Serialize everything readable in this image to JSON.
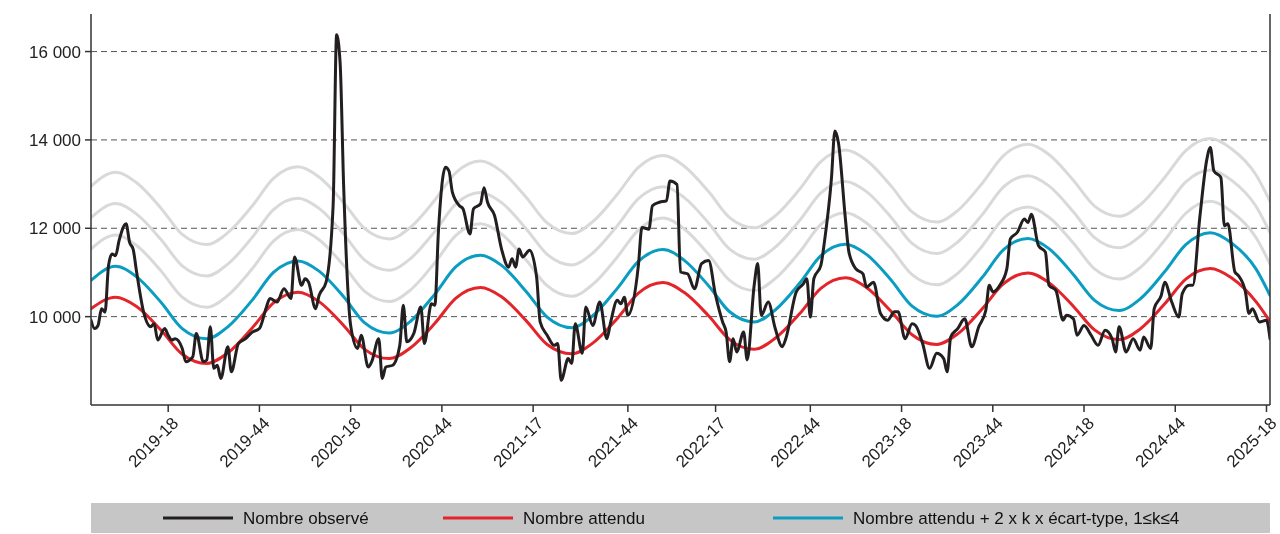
{
  "chart_data": {
    "type": "line",
    "x": [
      "2018-11-26",
      "2019-01-14",
      "2019-02-25",
      "2019-04-15",
      "2019-05-27",
      "2019-07-15",
      "2019-08-26",
      "2019-10-14",
      "2019-11-25",
      "2020-01-13",
      "2020-02-24",
      "2020-04-13",
      "2020-05-25",
      "2020-07-13",
      "2020-08-24",
      "2020-10-12",
      "2020-11-23",
      "2021-01-11",
      "2021-02-22",
      "2021-04-12",
      "2021-05-24",
      "2021-07-12",
      "2021-08-23",
      "2021-10-11",
      "2021-11-22",
      "2022-01-10",
      "2022-02-21",
      "2022-04-11",
      "2022-05-23",
      "2022-07-11",
      "2022-08-22",
      "2022-10-10",
      "2022-11-21",
      "2023-01-09",
      "2023-02-20",
      "2023-04-10",
      "2023-05-22",
      "2023-07-10",
      "2023-08-21",
      "2023-10-09",
      "2023-11-20",
      "2024-01-08",
      "2024-02-19",
      "2024-04-08",
      "2024-05-20",
      "2024-07-08",
      "2024-08-19",
      "2024-10-07",
      "2024-11-18",
      "2025-01-06",
      "2025-02-17",
      "2025-04-07",
      "2025-05-05"
    ],
    "series": [
      {
        "name": "Nombre observé",
        "color": "#231f20",
        "x": [
          "2018-11-26",
          "2018-12-03",
          "2018-12-10",
          "2018-12-17",
          "2018-12-24",
          "2018-12-31",
          "2019-01-07",
          "2019-01-14",
          "2019-01-21",
          "2019-02-04",
          "2019-02-11",
          "2019-02-18",
          "2019-02-25",
          "2019-03-11",
          "2019-03-25",
          "2019-04-01",
          "2019-04-08",
          "2019-04-22",
          "2019-04-29",
          "2019-05-06",
          "2019-05-13",
          "2019-05-27",
          "2019-06-03",
          "2019-06-17",
          "2019-06-24",
          "2019-07-08",
          "2019-07-15",
          "2019-07-22",
          "2019-07-29",
          "2019-08-05",
          "2019-08-12",
          "2019-08-26",
          "2019-09-02",
          "2019-09-16",
          "2019-09-30",
          "2019-10-14",
          "2019-10-28",
          "2019-11-11",
          "2019-11-18",
          "2019-12-02",
          "2019-12-16",
          "2019-12-30",
          "2020-01-06",
          "2020-01-20",
          "2020-01-27",
          "2020-02-03",
          "2020-02-17",
          "2020-02-24",
          "2020-03-09",
          "2020-03-23",
          "2020-03-30",
          "2020-04-06",
          "2020-04-13",
          "2020-04-27",
          "2020-05-11",
          "2020-05-18",
          "2020-06-01",
          "2020-06-08",
          "2020-06-22",
          "2020-06-29",
          "2020-07-06",
          "2020-07-20",
          "2020-08-03",
          "2020-08-10",
          "2020-08-17",
          "2020-08-31",
          "2020-09-14",
          "2020-09-21",
          "2020-10-05",
          "2020-10-12",
          "2020-10-19",
          "2020-11-02",
          "2020-11-09",
          "2020-11-16",
          "2020-11-30",
          "2020-12-07",
          "2020-12-21",
          "2020-12-28",
          "2021-01-11",
          "2021-01-18",
          "2021-01-25",
          "2021-02-08",
          "2021-02-22",
          "2021-03-08",
          "2021-03-15",
          "2021-03-22",
          "2021-03-29",
          "2021-04-05",
          "2021-04-19",
          "2021-05-03",
          "2021-05-10",
          "2021-05-24",
          "2021-06-07",
          "2021-06-14",
          "2021-06-21",
          "2021-07-05",
          "2021-07-12",
          "2021-07-19",
          "2021-08-02",
          "2021-08-09",
          "2021-08-23",
          "2021-09-06",
          "2021-09-20",
          "2021-09-27",
          "2021-10-11",
          "2021-10-18",
          "2021-10-25",
          "2021-11-01",
          "2021-11-22",
          "2021-11-29",
          "2021-12-13",
          "2021-12-20",
          "2022-01-03",
          "2022-01-17",
          "2022-01-24",
          "2022-02-07",
          "2022-02-14",
          "2022-02-28",
          "2022-03-14",
          "2022-03-28",
          "2022-04-11",
          "2022-04-25",
          "2022-05-09",
          "2022-05-16",
          "2022-05-23",
          "2022-05-30",
          "2022-06-06",
          "2022-06-20",
          "2022-06-27",
          "2022-07-11",
          "2022-07-18",
          "2022-07-25",
          "2022-08-08",
          "2022-08-22",
          "2022-09-05",
          "2022-09-12",
          "2022-10-03",
          "2022-10-17",
          "2022-10-24",
          "2022-10-31",
          "2022-11-07",
          "2022-11-21",
          "2022-11-28",
          "2022-12-12",
          "2022-12-19",
          "2022-12-26",
          "2023-01-09",
          "2023-01-16",
          "2023-01-30",
          "2023-02-13",
          "2023-02-20",
          "2023-03-06",
          "2023-03-20",
          "2023-04-03",
          "2023-04-17",
          "2023-04-24",
          "2023-05-08",
          "2023-05-22",
          "2023-05-29",
          "2023-06-12",
          "2023-06-26",
          "2023-07-10",
          "2023-07-24",
          "2023-07-31",
          "2023-08-07",
          "2023-08-21",
          "2023-09-04",
          "2023-09-18",
          "2023-10-02",
          "2023-10-16",
          "2023-10-23",
          "2023-10-30",
          "2023-11-13",
          "2023-11-27",
          "2023-12-04",
          "2023-12-18",
          "2024-01-01",
          "2024-01-08",
          "2024-01-15",
          "2024-01-29",
          "2024-02-12",
          "2024-02-19",
          "2024-03-04",
          "2024-03-18",
          "2024-03-25",
          "2024-04-08",
          "2024-04-15",
          "2024-04-29",
          "2024-05-13",
          "2024-05-27",
          "2024-06-10",
          "2024-06-24",
          "2024-07-01",
          "2024-07-08",
          "2024-07-22",
          "2024-08-05",
          "2024-08-19",
          "2024-08-26",
          "2024-09-09",
          "2024-09-16",
          "2024-09-30",
          "2024-10-07",
          "2024-10-21",
          "2024-11-04",
          "2024-11-11",
          "2024-11-25",
          "2024-12-02",
          "2024-12-16",
          "2024-12-30",
          "2025-01-06",
          "2025-01-13",
          "2025-01-27",
          "2025-02-03",
          "2025-02-10",
          "2025-02-24",
          "2025-03-03",
          "2025-03-17",
          "2025-03-24",
          "2025-03-31",
          "2025-04-14",
          "2025-04-28",
          "2025-05-05"
        ],
        "values": [
          9920,
          9730,
          9800,
          10180,
          10100,
          11160,
          11420,
          11380,
          11720,
          12100,
          11680,
          11530,
          11010,
          10100,
          9770,
          9840,
          9470,
          9730,
          9580,
          9470,
          9500,
          9280,
          8980,
          9090,
          9620,
          8980,
          9020,
          9770,
          8830,
          8900,
          8600,
          9320,
          8750,
          9390,
          9500,
          9650,
          9730,
          10220,
          10410,
          10330,
          10630,
          10410,
          11350,
          10710,
          10860,
          10780,
          10180,
          10480,
          10780,
          12510,
          16380,
          15740,
          12960,
          9800,
          9280,
          9580,
          8860,
          8980,
          9500,
          8600,
          8860,
          8900,
          9350,
          10260,
          9430,
          9620,
          10220,
          9390,
          10290,
          10260,
          11910,
          13380,
          13300,
          12810,
          12510,
          12440,
          11870,
          12440,
          12550,
          12920,
          12590,
          12290,
          11530,
          11120,
          11310,
          11120,
          11530,
          11350,
          11500,
          10890,
          9880,
          9580,
          9350,
          9390,
          8560,
          9050,
          8940,
          9840,
          9170,
          10220,
          9800,
          10330,
          9500,
          9840,
          10370,
          10290,
          10440,
          10030,
          11160,
          12020,
          11980,
          12510,
          12590,
          12620,
          13070,
          12990,
          11010,
          10970,
          10630,
          11200,
          11270,
          10480,
          9880,
          9650,
          8980,
          9500,
          9200,
          9650,
          9020,
          10710,
          11200,
          10030,
          10330,
          9730,
          9320,
          9500,
          10560,
          10740,
          10860,
          9990,
          10860,
          11160,
          11680,
          13110,
          14200,
          13940,
          12210,
          11460,
          11080,
          10970,
          10670,
          10780,
          10070,
          9920,
          10110,
          10110,
          9500,
          9840,
          9800,
          9390,
          8830,
          9170,
          9050,
          8750,
          9540,
          9730,
          9950,
          9320,
          9770,
          10140,
          10710,
          10560,
          10710,
          11080,
          11760,
          11910,
          12210,
          12130,
          12320,
          11610,
          11460,
          10710,
          10590,
          9920,
          10030,
          9950,
          9580,
          9800,
          9580,
          9350,
          9690,
          9500,
          9200,
          9770,
          9200,
          9500,
          9240,
          9540,
          9280,
          10180,
          10480,
          10780,
          10330,
          9990,
          10520,
          10710,
          10710,
          12250,
          13560,
          13830,
          13300,
          13150,
          12060,
          12100,
          11010,
          10930,
          10560,
          10070,
          10180,
          9880,
          9920,
          9500
        ]
      },
      {
        "name": "Nombre attendu",
        "color": "#e3242b",
        "values": [
          10180,
          10440,
          10230,
          9690,
          9150,
          8940,
          9180,
          9750,
          10310,
          10550,
          10340,
          9800,
          9260,
          9050,
          9290,
          9850,
          10420,
          10660,
          10450,
          9910,
          9370,
          9160,
          9400,
          9960,
          10530,
          10770,
          10550,
          10020,
          9480,
          9260,
          9510,
          10070,
          10640,
          10880,
          10660,
          10120,
          9590,
          9370,
          9610,
          10180,
          10740,
          10990,
          10770,
          10230,
          9700,
          9480,
          9720,
          10290,
          10850,
          11090,
          10880,
          10340,
          9890
        ]
      },
      {
        "name": "Nombre attendu + 2 x k x écart-type, 1≤k≤4",
        "color": "#0b9dc1",
        "values": [
          10820,
          11140,
          10900,
          10320,
          9730,
          9500,
          9770,
          10380,
          11000,
          11260,
          11030,
          10450,
          9860,
          9630,
          9890,
          10510,
          11130,
          11390,
          11160,
          10570,
          9990,
          9750,
          10020,
          10640,
          11250,
          11520,
          11280,
          10700,
          10110,
          9880,
          10150,
          10760,
          11380,
          11640,
          11410,
          10830,
          10240,
          10010,
          10270,
          10890,
          11510,
          11770,
          11540,
          10950,
          10370,
          10140,
          10400,
          11020,
          11630,
          11900,
          11670,
          11080,
          10480
        ]
      },
      {
        "color": "#d9d9d9",
        "values": [
          11530,
          11850,
          11610,
          11030,
          10440,
          10210,
          10480,
          11090,
          11710,
          11970,
          11740,
          11160,
          10570,
          10340,
          10600,
          11220,
          11840,
          12100,
          11870,
          11280,
          10700,
          10460,
          10730,
          11350,
          11960,
          12230,
          11990,
          11410,
          10820,
          10590,
          10860,
          11470,
          12090,
          12350,
          12120,
          11540,
          10950,
          10720,
          10980,
          11600,
          12220,
          12480,
          12250,
          11660,
          11080,
          10850,
          11110,
          11730,
          12340,
          12610,
          12380,
          11790,
          11190
        ]
      },
      {
        "color": "#d9d9d9",
        "values": [
          12240,
          12560,
          12320,
          11740,
          11150,
          10920,
          11190,
          11800,
          12420,
          12680,
          12450,
          11870,
          11280,
          11050,
          11310,
          11930,
          12550,
          12810,
          12580,
          11990,
          11410,
          11170,
          11440,
          12060,
          12670,
          12940,
          12700,
          12120,
          11530,
          11300,
          11570,
          12180,
          12800,
          13060,
          12830,
          12250,
          11660,
          11430,
          11690,
          12310,
          12930,
          13190,
          12960,
          12370,
          11790,
          11560,
          11820,
          12440,
          13050,
          13320,
          13090,
          12500,
          11900
        ]
      },
      {
        "color": "#d9d9d9",
        "values": [
          12950,
          13270,
          13030,
          12450,
          11860,
          11630,
          11900,
          12510,
          13130,
          13390,
          13160,
          12580,
          11990,
          11760,
          12020,
          12640,
          13260,
          13520,
          13290,
          12700,
          12120,
          11880,
          12150,
          12770,
          13380,
          13650,
          13410,
          12830,
          12240,
          12010,
          12280,
          12890,
          13510,
          13770,
          13540,
          12960,
          12370,
          12140,
          12400,
          13020,
          13640,
          13900,
          13670,
          13080,
          12500,
          12270,
          12530,
          13150,
          13760,
          14030,
          13800,
          13210,
          12610
        ]
      }
    ],
    "xlim": [
      "2018-11-26",
      "2025-05-05"
    ],
    "xticks": [
      {
        "value": "2019-04-29",
        "label": "2019-18"
      },
      {
        "value": "2019-10-28",
        "label": "2019-44"
      },
      {
        "value": "2020-04-27",
        "label": "2020-18"
      },
      {
        "value": "2020-10-26",
        "label": "2020-44"
      },
      {
        "value": "2021-04-26",
        "label": "2021-17"
      },
      {
        "value": "2021-11-01",
        "label": "2021-44"
      },
      {
        "value": "2022-04-25",
        "label": "2022-17"
      },
      {
        "value": "2022-10-31",
        "label": "2022-44"
      },
      {
        "value": "2023-05-01",
        "label": "2023-18"
      },
      {
        "value": "2023-10-30",
        "label": "2023-44"
      },
      {
        "value": "2024-04-29",
        "label": "2024-18"
      },
      {
        "value": "2024-10-28",
        "label": "2024-44"
      },
      {
        "value": "2025-04-28",
        "label": "2025-18"
      }
    ],
    "ylim": [
      8000,
      16850
    ],
    "yticks": [
      {
        "value": 10000,
        "label": "10 000"
      },
      {
        "value": 12000,
        "label": "12 000"
      },
      {
        "value": 14000,
        "label": "14 000"
      },
      {
        "value": 16000,
        "label": "16 000"
      }
    ],
    "grid": "y",
    "legend": "bottom",
    "marker": "none",
    "line_style": "solid"
  }
}
